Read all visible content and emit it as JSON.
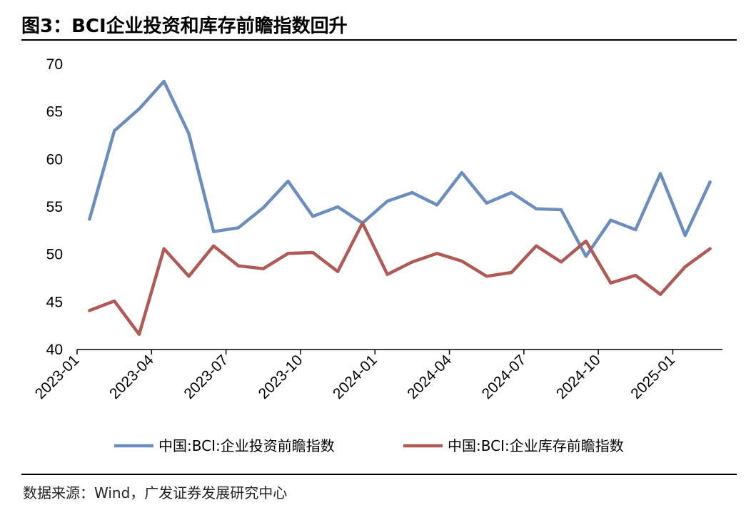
{
  "header": {
    "title": "图3：BCI企业投资和库存前瞻指数回升"
  },
  "footer": {
    "source": "数据来源：Wind，广发证券发展研究中心"
  },
  "chart_data": {
    "type": "line",
    "title": "图3：BCI企业投资和库存前瞻指数回升",
    "xlabel": "",
    "ylabel": "",
    "ylim": [
      40,
      70
    ],
    "yticks": [
      40,
      45,
      50,
      55,
      60,
      65,
      70
    ],
    "x": [
      "2023-01",
      "2023-02",
      "2023-03",
      "2023-04",
      "2023-05",
      "2023-06",
      "2023-07",
      "2023-08",
      "2023-09",
      "2023-10",
      "2023-11",
      "2023-12",
      "2024-01",
      "2024-02",
      "2024-03",
      "2024-04",
      "2024-05",
      "2024-06",
      "2024-07",
      "2024-08",
      "2024-09",
      "2024-10",
      "2024-11",
      "2024-12",
      "2025-01",
      "2025-02"
    ],
    "xtick_labels": [
      "2023-01",
      "2023-04",
      "2023-07",
      "2023-10",
      "2024-01",
      "2024-04",
      "2024-07",
      "2024-10",
      "2025-01"
    ],
    "grid": false,
    "legend_position": "bottom",
    "series": [
      {
        "name": "中国:BCI:企业投资前瞻指数",
        "color": "#6c8ebf",
        "values": [
          53.7,
          63.0,
          65.3,
          68.2,
          62.7,
          52.4,
          52.8,
          54.9,
          57.7,
          54.0,
          55.0,
          53.3,
          55.6,
          56.5,
          55.2,
          58.6,
          55.4,
          56.5,
          54.8,
          54.7,
          49.8,
          53.6,
          52.6,
          58.5,
          52.0,
          57.6
        ]
      },
      {
        "name": "中国:BCI:企业库存前瞻指数",
        "color": "#b05a56",
        "values": [
          44.1,
          45.1,
          41.6,
          50.6,
          47.7,
          50.9,
          48.8,
          48.5,
          50.1,
          50.2,
          48.2,
          53.3,
          47.9,
          49.2,
          50.1,
          49.3,
          47.7,
          48.1,
          50.9,
          49.2,
          51.4,
          47.0,
          47.8,
          45.8,
          48.7,
          50.6
        ]
      }
    ]
  }
}
